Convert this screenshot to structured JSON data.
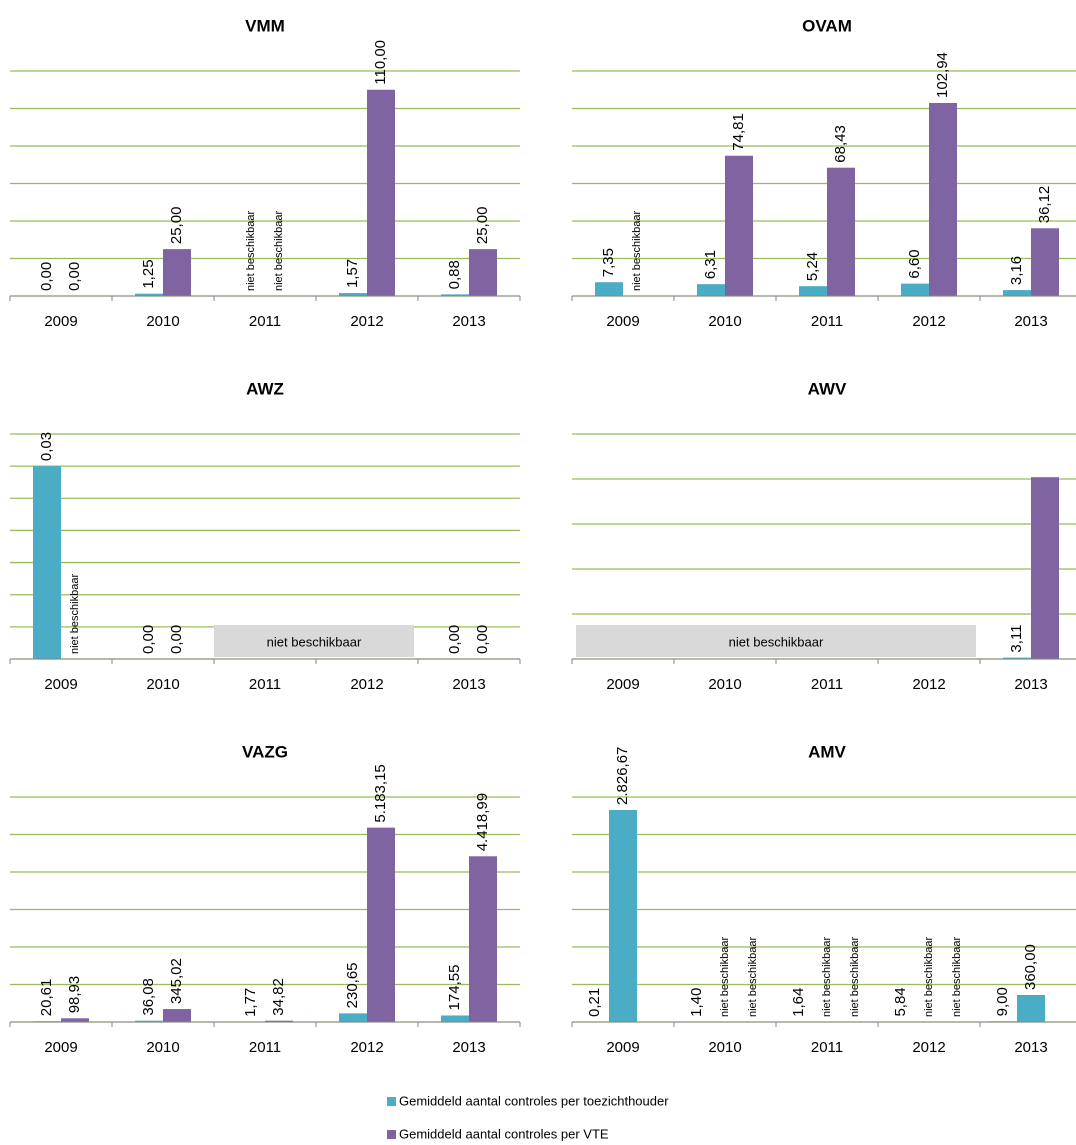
{
  "legend": [
    {
      "name": "Gemiddeld aantal controles per toezichthouder",
      "color": "#4bacc6"
    },
    {
      "name": "Gemiddeld aantal controles per VTE",
      "color": "#8064a2"
    }
  ],
  "chart_data": [
    {
      "type": "bar",
      "title": "VMM",
      "categories": [
        "2009",
        "2010",
        "2011",
        "2012",
        "2013"
      ],
      "series": [
        {
          "color": "#4bacc6",
          "values": [
            0,
            1.25,
            null,
            1.57,
            0.88
          ],
          "value_labels": [
            "0,00",
            "1,25",
            "niet beschikbaar",
            "1,57",
            "0,88"
          ]
        },
        {
          "color": "#8064a2",
          "values": [
            0,
            25,
            null,
            110,
            25
          ],
          "value_labels": [
            "0,00",
            "25,00",
            "niet beschikbaar",
            "110,00",
            "25,00"
          ]
        }
      ],
      "ylim": [
        0,
        120
      ],
      "yticks": [
        0,
        20,
        40,
        60,
        80,
        100,
        120
      ],
      "grid": true
    },
    {
      "type": "bar",
      "title": "OVAM",
      "categories": [
        "2009",
        "2010",
        "2011",
        "2012",
        "2013"
      ],
      "series": [
        {
          "color": "#4bacc6",
          "values": [
            7.35,
            6.31,
            5.24,
            6.6,
            3.16
          ],
          "value_labels": [
            "7,35",
            "6,31",
            "5,24",
            "6,60",
            "3,16"
          ]
        },
        {
          "color": "#8064a2",
          "values": [
            null,
            74.81,
            68.43,
            102.94,
            36.12
          ],
          "value_labels": [
            "niet beschikbaar",
            "74,81",
            "68,43",
            "102,94",
            "36,12"
          ]
        }
      ],
      "ylim": [
        0,
        120
      ],
      "yticks": [
        0,
        20,
        40,
        60,
        80,
        100,
        120
      ],
      "grid": true
    },
    {
      "type": "bar",
      "title": "AWZ",
      "categories": [
        "2009",
        "2010",
        "2011",
        "2012",
        "2013"
      ],
      "series": [
        {
          "color": "#4bacc6",
          "values": [
            0.03,
            0,
            null,
            null,
            0
          ],
          "value_labels": [
            "0,03",
            "0,00",
            null,
            null,
            "0,00"
          ]
        },
        {
          "color": "#8064a2",
          "values": [
            null,
            0,
            null,
            null,
            0
          ],
          "value_labels": [
            "niet beschikbaar",
            "0,00",
            null,
            null,
            "0,00"
          ]
        }
      ],
      "na_range": {
        "label": "niet beschikbaar",
        "start": "2011",
        "end": "2012"
      },
      "ylim": [
        0,
        0.035
      ],
      "yticks": [
        0,
        0.005,
        0.01,
        0.015,
        0.02,
        0.025,
        0.03,
        0.035
      ],
      "grid": true
    },
    {
      "type": "bar",
      "title": "AWV",
      "categories": [
        "2009",
        "2010",
        "2011",
        "2012",
        "2013"
      ],
      "series": [
        {
          "color": "#4bacc6",
          "values": [
            null,
            null,
            null,
            null,
            3.11
          ],
          "value_labels": [
            null,
            null,
            null,
            null,
            "3,11"
          ]
        },
        {
          "color": "#8064a2",
          "values": [
            null,
            null,
            null,
            null,
            404
          ],
          "value_labels": [
            null,
            null,
            null,
            null,
            null
          ]
        }
      ],
      "na_range": {
        "label": "niet beschikbaar",
        "start": "2009",
        "end": "2012"
      },
      "ylim": [
        0,
        500
      ],
      "yticks": [
        0,
        100,
        200,
        300,
        400,
        500
      ],
      "grid": true
    },
    {
      "type": "bar",
      "title": "VAZG",
      "categories": [
        "2009",
        "2010",
        "2011",
        "2012",
        "2013"
      ],
      "series": [
        {
          "color": "#4bacc6",
          "values": [
            20.61,
            36.08,
            1.77,
            230.65,
            174.55
          ],
          "value_labels": [
            "20,61",
            "36,08",
            "1,77",
            "230,65",
            "174,55"
          ]
        },
        {
          "color": "#8064a2",
          "values": [
            98.93,
            345.02,
            34.82,
            5183.15,
            4418.99
          ],
          "value_labels": [
            "98,93",
            "345,02",
            "34,82",
            "5.183,15",
            "4.418,99"
          ]
        }
      ],
      "ylim": [
        0,
        6000
      ],
      "yticks": [
        0,
        1000,
        2000,
        3000,
        4000,
        5000,
        6000
      ],
      "grid": true
    },
    {
      "type": "bar",
      "title": "AMV",
      "categories": [
        "2009",
        "2010",
        "2011",
        "2012",
        "2013"
      ],
      "series": [
        {
          "color": "#4bacc6",
          "values": [
            0.21,
            1.4,
            1.64,
            5.84,
            9
          ],
          "value_labels": [
            "0,21",
            "1,40",
            "1,64",
            "5,84",
            "9,00"
          ]
        },
        {
          "color": "#4bacc6",
          "values": [
            2826.67,
            null,
            null,
            null,
            360
          ],
          "value_labels": [
            "2.826,67",
            "niet beschikbaar",
            "niet beschikbaar",
            "niet beschikbaar",
            "360,00"
          ]
        },
        {
          "color": "#8064a2",
          "values": [
            null,
            null,
            null,
            null,
            null
          ],
          "value_labels": [
            null,
            "niet beschikbaar",
            "niet beschikbaar",
            "niet beschikbaar",
            null
          ]
        }
      ],
      "ylim": [
        0,
        3000
      ],
      "yticks": [
        0,
        500,
        1000,
        1500,
        2000,
        2500,
        3000
      ],
      "grid": true
    }
  ]
}
